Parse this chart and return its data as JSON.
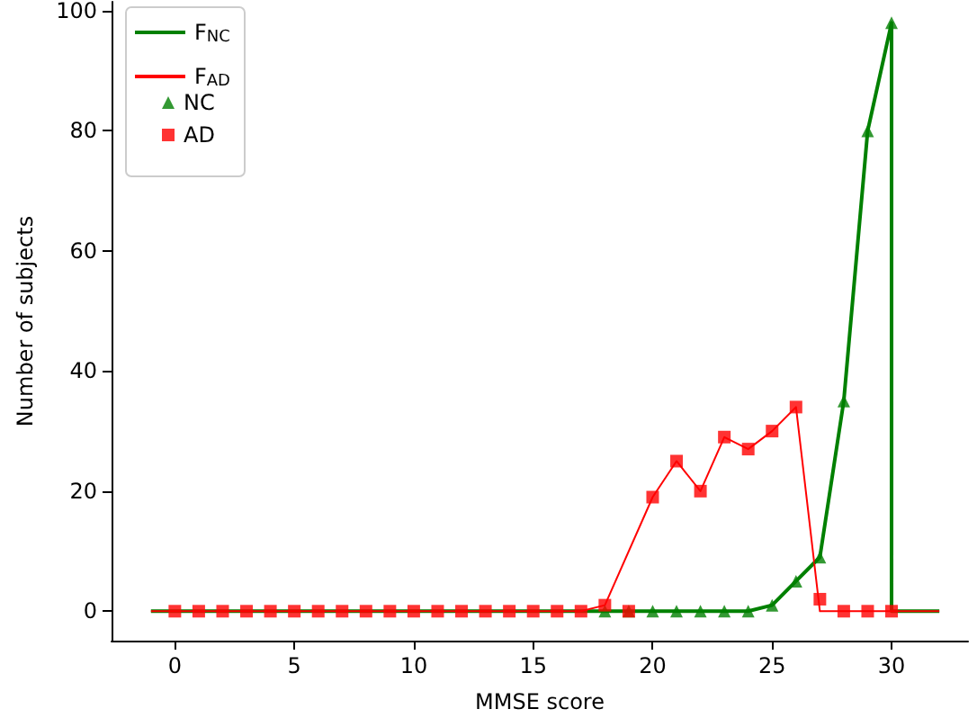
{
  "chart_data": {
    "type": "line",
    "xlabel": "MMSE score",
    "ylabel": "Number of subjects",
    "xlim": [
      -2.65,
      33.2
    ],
    "xticks": [
      0,
      5,
      10,
      15,
      20,
      25,
      30
    ],
    "ylim": [
      -4.9,
      101.5
    ],
    "yticks": [
      0,
      20,
      40,
      60,
      80,
      100
    ],
    "grid": false,
    "legend": "top left",
    "series": [
      {
        "name": "F$_{NC}$",
        "marker": "none",
        "color": "#008000",
        "x": [
          -1,
          24,
          25,
          26,
          27,
          28,
          29,
          30,
          30,
          32
        ],
        "values": [
          0,
          0,
          1,
          5,
          9,
          35,
          80,
          98,
          0,
          0
        ]
      },
      {
        "name": "F$_{AD}$",
        "marker": "none",
        "color": "#ff0000",
        "x": [
          -1,
          17,
          18,
          20,
          21,
          22,
          23,
          24,
          25,
          26,
          27,
          32
        ],
        "values": [
          0,
          0,
          1,
          19,
          25,
          20,
          29,
          27,
          30,
          34,
          0,
          0
        ]
      },
      {
        "name": "NC",
        "type": "scatter",
        "marker": "triangle",
        "color": "#008000",
        "x": [
          18,
          19,
          20,
          21,
          22,
          23,
          24,
          25,
          26,
          27,
          28,
          29,
          30
        ],
        "values": [
          0,
          0,
          0,
          0,
          0,
          0,
          0,
          1,
          5,
          9,
          35,
          80,
          98
        ]
      },
      {
        "name": "AD",
        "type": "scatter",
        "marker": "square",
        "color": "#ff0000",
        "x": [
          0,
          1,
          2,
          3,
          4,
          5,
          6,
          7,
          8,
          9,
          10,
          11,
          12,
          13,
          14,
          15,
          16,
          17,
          18,
          19,
          20,
          21,
          22,
          23,
          24,
          25,
          26,
          27,
          28,
          29,
          30
        ],
        "values": [
          0,
          0,
          0,
          0,
          0,
          0,
          0,
          0,
          0,
          0,
          0,
          0,
          0,
          0,
          0,
          0,
          0,
          0,
          1,
          0,
          19,
          25,
          20,
          29,
          27,
          30,
          34,
          2,
          0,
          0,
          0
        ]
      }
    ]
  }
}
